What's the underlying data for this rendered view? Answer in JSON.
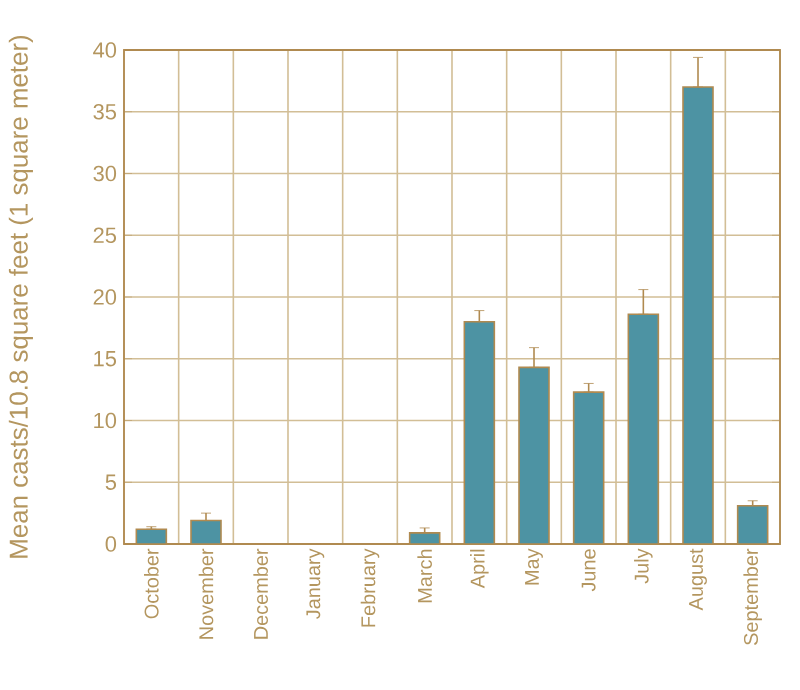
{
  "chart_data": {
    "type": "bar",
    "ylabel": "Mean casts/10.8 square feet (1 square meter)",
    "categories": [
      "October",
      "November",
      "December",
      "January",
      "February",
      "March",
      "April",
      "May",
      "June",
      "July",
      "August",
      "September"
    ],
    "values": [
      1.2,
      1.9,
      0,
      0,
      0,
      0.9,
      18.0,
      14.3,
      12.3,
      18.6,
      37.0,
      3.1
    ],
    "errors": [
      [
        1.2,
        1.4
      ],
      [
        1.9,
        2.5
      ],
      null,
      null,
      null,
      [
        0.9,
        1.3
      ],
      [
        18.0,
        18.9
      ],
      [
        14.3,
        15.9
      ],
      [
        12.3,
        13.0
      ],
      [
        18.6,
        20.6
      ],
      [
        37.0,
        39.4
      ],
      [
        3.1,
        3.5
      ]
    ],
    "color": "#4d93a3",
    "ylim": [
      0,
      40
    ],
    "yticks": [
      0,
      5,
      10,
      15,
      20,
      25,
      30,
      35,
      40
    ],
    "grid": true
  }
}
